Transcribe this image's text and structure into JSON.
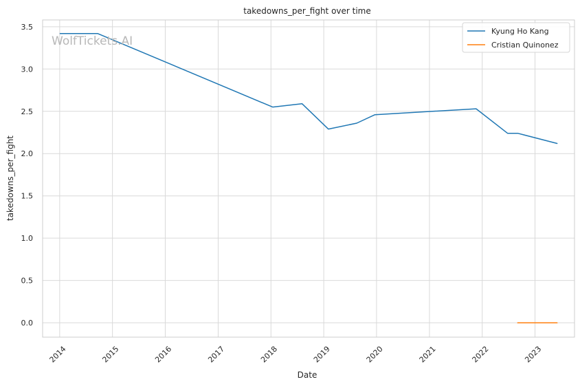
{
  "chart_data": {
    "type": "line",
    "title": "takedowns_per_fight over time",
    "xlabel": "Date",
    "ylabel": "takedowns_per_fight",
    "watermark": "WolfTickets.AI",
    "x_ticks": [
      "2014",
      "2015",
      "2016",
      "2017",
      "2018",
      "2019",
      "2020",
      "2021",
      "2022",
      "2023"
    ],
    "y_ticks": [
      "0.0",
      "0.5",
      "1.0",
      "1.5",
      "2.0",
      "2.5",
      "3.0",
      "3.5"
    ],
    "xlim": [
      "2013-09-05",
      "2023-10-01"
    ],
    "ylim": [
      -0.17,
      3.58
    ],
    "grid": true,
    "legend_position": "top-right",
    "series": [
      {
        "name": "Kyung Ho Kang",
        "color": "#1f77b4",
        "points": [
          {
            "x": "2014-01-04",
            "y": 3.42
          },
          {
            "x": "2014-09-20",
            "y": 3.42
          },
          {
            "x": "2018-01-13",
            "y": 2.55
          },
          {
            "x": "2018-08-04",
            "y": 2.59
          },
          {
            "x": "2019-02-02",
            "y": 2.29
          },
          {
            "x": "2019-08-17",
            "y": 2.36
          },
          {
            "x": "2019-12-21",
            "y": 2.46
          },
          {
            "x": "2021-11-20",
            "y": 2.53
          },
          {
            "x": "2022-06-25",
            "y": 2.24
          },
          {
            "x": "2022-09-03",
            "y": 2.24
          },
          {
            "x": "2023-06-03",
            "y": 2.12
          }
        ]
      },
      {
        "name": "Cristian Quinonez",
        "color": "#ff7f0e",
        "points": [
          {
            "x": "2022-09-03",
            "y": 0.0
          },
          {
            "x": "2023-06-03",
            "y": 0.0
          }
        ]
      }
    ]
  }
}
